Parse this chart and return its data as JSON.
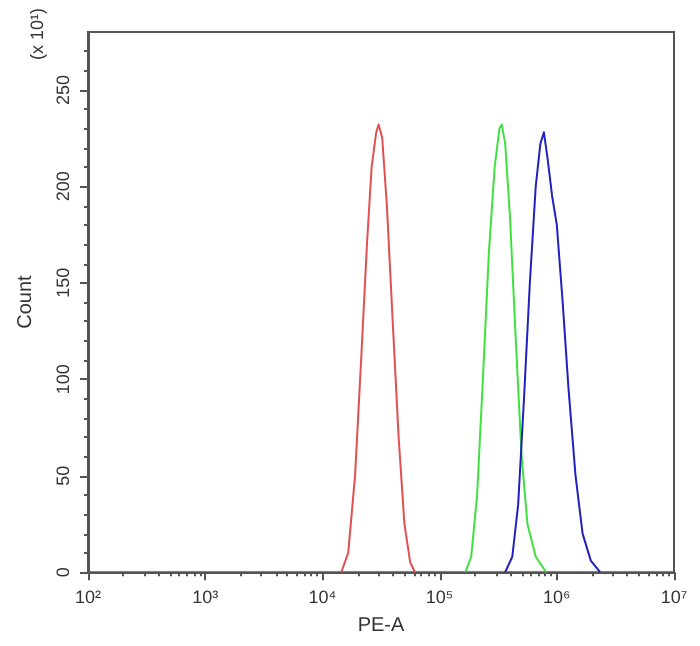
{
  "chart_data": {
    "type": "line",
    "xlabel": "PE-A",
    "ylabel": "Count",
    "annotations": [
      "(x 10¹)"
    ],
    "log": "x",
    "grid": false,
    "marker": "none",
    "line_style": "solid",
    "xlim": [
      100,
      10000000
    ],
    "xticks": [
      {
        "value": 100,
        "label": "10²"
      },
      {
        "value": 1000,
        "label": "10³"
      },
      {
        "value": 10000,
        "label": "10⁴"
      },
      {
        "value": 100000,
        "label": "10⁵"
      },
      {
        "value": 1000000,
        "label": "10⁶"
      },
      {
        "value": 10000000,
        "label": "10⁷"
      }
    ],
    "ylim": [
      0,
      280
    ],
    "yticks": [
      0,
      50,
      100,
      150,
      200,
      250
    ],
    "series": [
      {
        "color": "#e05050",
        "x": [
          14500,
          16600,
          19000,
          21400,
          24000,
          26300,
          28800,
          30200,
          32400,
          35500,
          39800,
          44700,
          50100,
          56200,
          61700
        ],
        "values": [
          0,
          10,
          50,
          110,
          170,
          210,
          228,
          232,
          225,
          190,
          130,
          70,
          25,
          5,
          0
        ]
      },
      {
        "color": "#40e040",
        "x": [
          166000,
          186000,
          209000,
          234000,
          263000,
          295000,
          324000,
          339000,
          363000,
          398000,
          447000,
          501000,
          562000,
          661000,
          813000
        ],
        "values": [
          0,
          8,
          40,
          100,
          165,
          210,
          230,
          232,
          222,
          185,
          120,
          60,
          25,
          8,
          0
        ]
      },
      {
        "color": "#2020c0",
        "x": [
          363000,
          417000,
          468000,
          525000,
          589000,
          661000,
          724000,
          776000,
          832000,
          912000,
          1000000,
          1122000,
          1259000,
          1445000,
          1660000,
          1950000,
          2340000
        ],
        "values": [
          0,
          8,
          35,
          90,
          150,
          200,
          222,
          228,
          215,
          195,
          180,
          140,
          95,
          50,
          20,
          6,
          0
        ]
      }
    ]
  }
}
